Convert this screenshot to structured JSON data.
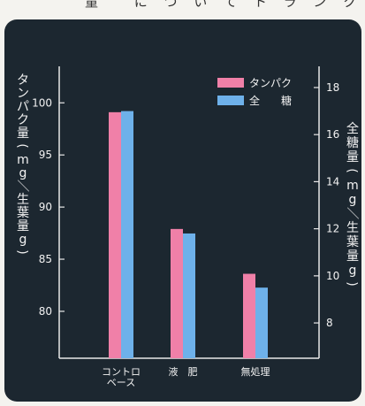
{
  "header_fragment": "量 　に つ い て ト ラ ン ク 〜 ト ウ",
  "chart_data": {
    "type": "bar",
    "categories": [
      "コントロ\nベース",
      "液　肥",
      "無処理"
    ],
    "series": [
      {
        "name": "タンパク",
        "axis": "left",
        "color": "#f080a8",
        "values": [
          99.1,
          87.9,
          83.6
        ]
      },
      {
        "name": "全　糖",
        "axis": "right",
        "color": "#6eb1ea",
        "values": [
          17.0,
          11.8,
          9.5
        ]
      }
    ],
    "y_left": {
      "label": "タンパク量(mg／生葉量g)",
      "range": [
        75.5,
        103.5
      ],
      "ticks": [
        80,
        85,
        90,
        95,
        100
      ]
    },
    "y_right": {
      "label": "全糖量(mg／生葉量g)",
      "range": [
        6.5,
        18.9
      ],
      "ticks": [
        8,
        10,
        12,
        14,
        16,
        18
      ]
    },
    "legend": {
      "position": "top-right",
      "items": [
        {
          "label": "タンパク",
          "color": "#f080a8"
        },
        {
          "label": "全　　糖",
          "color": "#6eb1ea"
        }
      ]
    },
    "grid": false
  }
}
